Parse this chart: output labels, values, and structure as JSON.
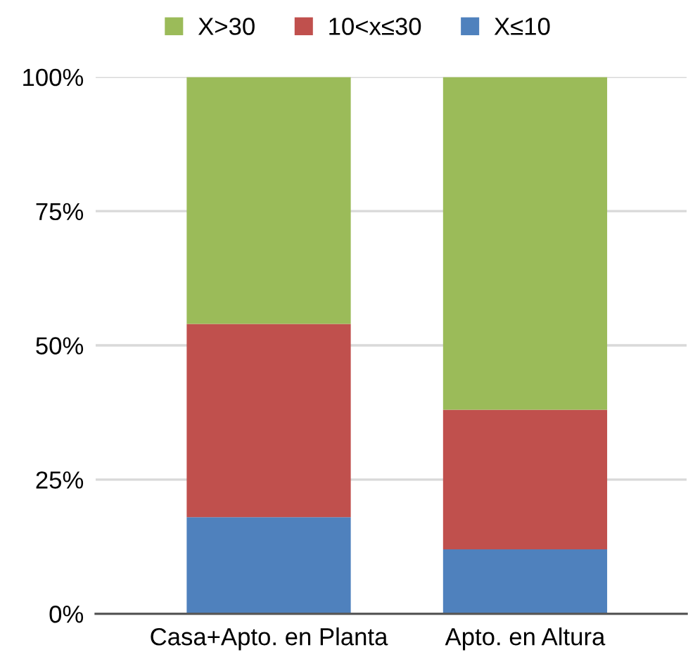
{
  "chart_data": {
    "type": "bar",
    "stacked": true,
    "categories": [
      "Casa+Apto. en Planta",
      "Apto. en Altura"
    ],
    "series": [
      {
        "name": "X≤10",
        "color": "#4f81bd",
        "values": [
          18,
          12
        ]
      },
      {
        "name": "10<x≤30",
        "color": "#c0504d",
        "values": [
          36,
          26
        ]
      },
      {
        "name": "X>30",
        "color": "#9bbb59",
        "values": [
          46,
          62
        ]
      }
    ],
    "ylim": [
      0,
      100
    ],
    "yticks": [
      {
        "value": 0,
        "label": "0%"
      },
      {
        "value": 25,
        "label": "25%"
      },
      {
        "value": 50,
        "label": "50%"
      },
      {
        "value": 75,
        "label": "75%"
      },
      {
        "value": 100,
        "label": "100%"
      }
    ],
    "grid": "y",
    "legend": "top"
  }
}
